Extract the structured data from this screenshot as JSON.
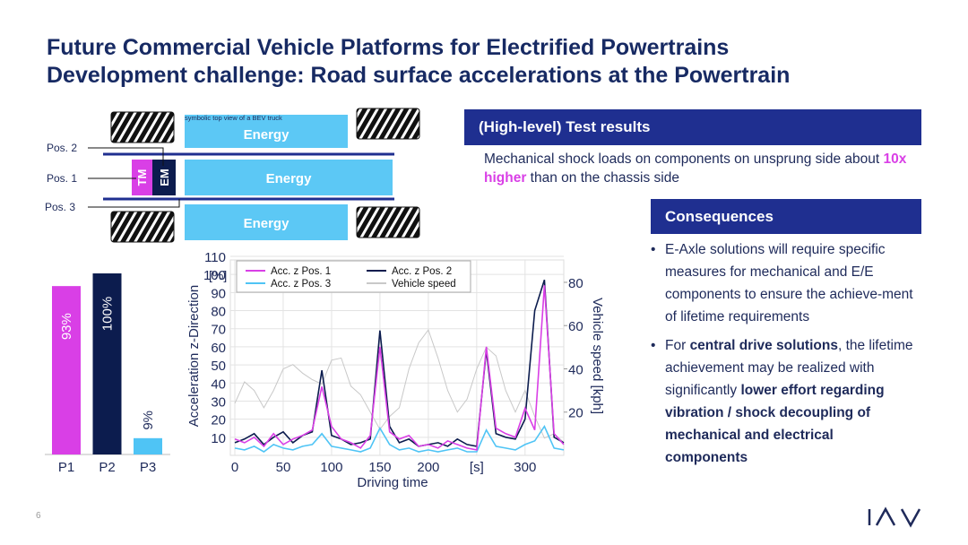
{
  "header": {
    "title": [
      "Future Commercial Vehicle Platforms for Electrified Powertrains",
      "Development challenge: Road surface accelerations at the Powertrain"
    ]
  },
  "diagram": {
    "caption": "symbolic top view of a BEV truck",
    "energy": [
      "Energy",
      "Energy",
      "Energy"
    ],
    "motors": [
      "TM",
      "EM"
    ],
    "positions": [
      "Pos. 2",
      "Pos. 1",
      "Pos. 3"
    ]
  },
  "chart_data": [
    {
      "type": "bar",
      "categories": [
        "P1",
        "P2",
        "P3"
      ],
      "values": [
        93,
        100,
        9
      ],
      "value_labels": [
        "93%",
        "100%",
        "9%"
      ],
      "colors": [
        "#d93fe6",
        "#0c1c4e",
        "#4fc4f5"
      ],
      "ylim": [
        0,
        100
      ]
    },
    {
      "type": "line",
      "x_label": "Driving time",
      "y_label": "Acceleration z-Direction",
      "y_unit": "[%]",
      "y2_label": "Vehicle speed [kph]",
      "x": [
        0,
        10,
        20,
        30,
        40,
        50,
        60,
        70,
        80,
        90,
        100,
        110,
        120,
        130,
        140,
        150,
        160,
        170,
        180,
        190,
        200,
        210,
        220,
        230,
        240,
        250,
        260,
        270,
        280,
        290,
        300,
        310,
        320,
        330,
        340
      ],
      "xlim": [
        0,
        340
      ],
      "xticks": [
        0,
        50,
        100,
        150,
        200,
        {
          "value": 250,
          "label": "[s]"
        },
        300
      ],
      "ylim": [
        0,
        110
      ],
      "yticks": [
        10,
        20,
        30,
        40,
        50,
        60,
        70,
        80,
        90,
        100,
        110
      ],
      "y2lim": [
        0,
        92
      ],
      "y2ticks": [
        20,
        40,
        60,
        80
      ],
      "grid": true,
      "legend": "upper left",
      "series": [
        {
          "name": "Acc. z Pos. 1",
          "color": "#d93fe6",
          "values": [
            9,
            7,
            10,
            5,
            12,
            6,
            9,
            11,
            14,
            38,
            16,
            9,
            7,
            4,
            11,
            60,
            13,
            9,
            11,
            5,
            6,
            4,
            8,
            6,
            4,
            3,
            60,
            15,
            12,
            10,
            26,
            14,
            94,
            12,
            6
          ]
        },
        {
          "name": "Acc. z Pos. 2",
          "color": "#0c1c4e",
          "values": [
            7,
            9,
            12,
            6,
            10,
            13,
            7,
            11,
            13,
            47,
            11,
            9,
            6,
            7,
            9,
            69,
            16,
            7,
            9,
            5,
            6,
            7,
            5,
            9,
            6,
            5,
            58,
            12,
            10,
            9,
            20,
            80,
            97,
            10,
            7
          ]
        },
        {
          "name": "Acc. z Pos. 3",
          "color": "#4fc4f5",
          "values": [
            4,
            3,
            5,
            2,
            6,
            4,
            3,
            5,
            6,
            12,
            5,
            4,
            3,
            2,
            4,
            15,
            6,
            3,
            4,
            2,
            3,
            2,
            3,
            4,
            2,
            2,
            14,
            5,
            4,
            3,
            6,
            8,
            16,
            4,
            3
          ]
        },
        {
          "name": "Vehicle speed",
          "color": "#c8c8c8",
          "axis": "y2",
          "values": [
            24,
            34,
            30,
            22,
            30,
            40,
            42,
            38,
            35,
            33,
            44,
            45,
            32,
            28,
            20,
            12,
            18,
            22,
            40,
            52,
            58,
            45,
            30,
            20,
            26,
            40,
            50,
            46,
            30,
            20,
            30,
            18,
            8,
            10,
            6
          ]
        }
      ]
    }
  ],
  "results": {
    "heading": "(High-level) Test results",
    "text": [
      "Mechanical shock loads on components on unsprung side about ",
      "10x higher",
      " than on the chassis side"
    ]
  },
  "consequences": {
    "heading": "Consequences",
    "bullets": [
      [
        "E-Axle solutions will require specific measures for mechanical and E/E components to ensure the achieve-ment of lifetime requirements"
      ],
      [
        "For ",
        "central drive solutions",
        ", the lifetime achievement may be realized with significantly ",
        "lower effort regarding vibration / shock decoupling of mechanical and electrical components"
      ]
    ]
  },
  "footer": {
    "page": "6"
  }
}
